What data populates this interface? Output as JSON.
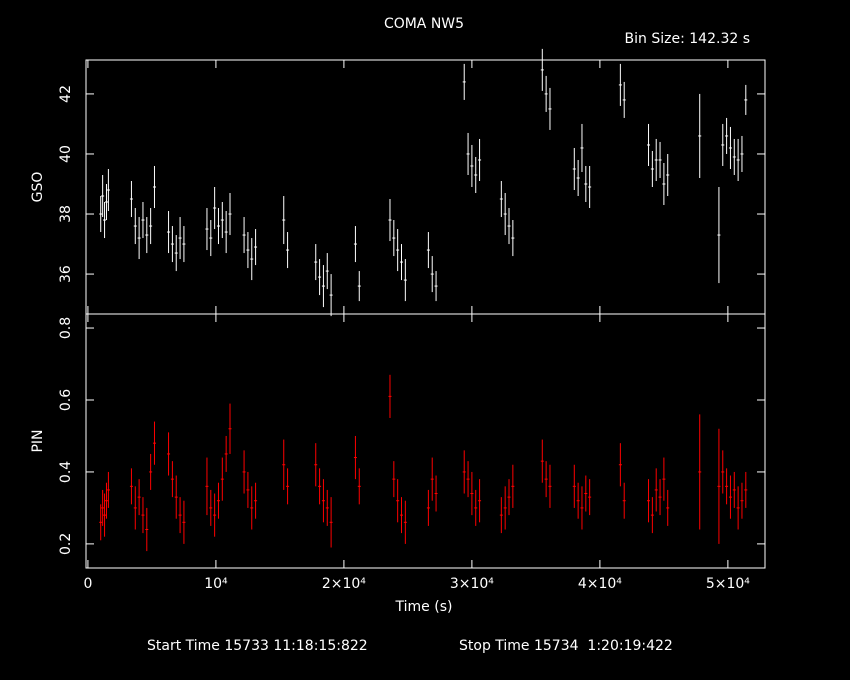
{
  "chart_data": [
    {
      "type": "errorbar",
      "title": "COMA NW5",
      "subtitle": "Bin Size: 142.32 s",
      "ylabel": "GSO",
      "color": "#ffffff",
      "xlim": [
        -150,
        52900
      ],
      "ylim": [
        34.67,
        43.13
      ],
      "yticks": [
        36,
        38,
        40,
        42
      ],
      "x": [
        1000,
        1150,
        1300,
        1450,
        1600,
        3400,
        3700,
        4000,
        4300,
        4600,
        4900,
        5200,
        6300,
        6600,
        6900,
        7200,
        7500,
        9300,
        9600,
        9900,
        10200,
        10500,
        10800,
        11100,
        12200,
        12500,
        12800,
        13100,
        15300,
        15600,
        17800,
        18100,
        18400,
        18700,
        19000,
        20900,
        21200,
        23600,
        23900,
        24200,
        24500,
        24800,
        26600,
        26900,
        27200,
        29400,
        29700,
        30000,
        30300,
        30600,
        32300,
        32600,
        32900,
        33200,
        35500,
        35800,
        36100,
        38000,
        38300,
        38600,
        38900,
        39200,
        41600,
        41900,
        43800,
        44100,
        44400,
        44700,
        45000,
        45300,
        47800,
        49300,
        49600,
        49900,
        50200,
        50500,
        50800,
        51100,
        51400
      ],
      "values": [
        38.0,
        38.6,
        37.8,
        38.4,
        38.8,
        38.5,
        37.6,
        37.2,
        37.8,
        37.3,
        37.6,
        38.9,
        37.4,
        37.0,
        36.7,
        37.2,
        37.0,
        37.5,
        37.2,
        38.2,
        37.6,
        37.8,
        37.4,
        38.0,
        37.3,
        36.8,
        36.5,
        36.9,
        37.8,
        36.8,
        36.4,
        35.9,
        35.6,
        36.1,
        35.3,
        37.0,
        35.6,
        37.8,
        37.2,
        36.8,
        36.4,
        35.8,
        36.8,
        36.0,
        35.6,
        42.4,
        40.0,
        39.6,
        39.3,
        39.8,
        38.5,
        38.0,
        37.6,
        37.2,
        42.8,
        42.0,
        41.5,
        39.5,
        39.2,
        40.2,
        39.0,
        38.9,
        42.3,
        41.8,
        40.3,
        39.5,
        39.8,
        39.8,
        39.0,
        39.3,
        40.6,
        37.3,
        40.3,
        40.6,
        40.2,
        39.9,
        39.8,
        40.0,
        41.8
      ],
      "errors": [
        0.6,
        0.7,
        0.6,
        0.6,
        0.7,
        0.6,
        0.6,
        0.7,
        0.6,
        0.6,
        0.6,
        0.7,
        0.7,
        0.6,
        0.6,
        0.7,
        0.6,
        0.7,
        0.6,
        0.7,
        0.6,
        0.6,
        0.7,
        0.7,
        0.6,
        0.6,
        0.7,
        0.6,
        0.8,
        0.6,
        0.6,
        0.6,
        0.7,
        0.6,
        0.7,
        0.6,
        0.5,
        0.7,
        0.6,
        0.7,
        0.6,
        0.7,
        0.6,
        0.6,
        0.5,
        0.6,
        0.7,
        0.7,
        0.6,
        0.7,
        0.6,
        0.7,
        0.6,
        0.6,
        0.7,
        0.6,
        0.7,
        0.7,
        0.6,
        0.8,
        0.6,
        0.7,
        0.7,
        0.6,
        0.7,
        0.6,
        0.7,
        0.6,
        0.7,
        0.7,
        1.4,
        1.6,
        0.7,
        0.6,
        0.7,
        0.6,
        0.7,
        0.6,
        0.5
      ]
    },
    {
      "type": "errorbar",
      "ylabel": "PIN",
      "xlabel": "Time (s)",
      "color": "#ff0000",
      "xlim": [
        -150,
        52900
      ],
      "ylim": [
        0.133,
        0.839
      ],
      "yticks": [
        0.2,
        0.4,
        0.6,
        0.8
      ],
      "xticks": [
        0,
        {
          "value": 10000,
          "label": "10⁴"
        },
        {
          "value": 20000,
          "label": "2×10⁴"
        },
        {
          "value": 30000,
          "label": "3×10⁴"
        },
        {
          "value": 40000,
          "label": "4×10⁴"
        },
        {
          "value": 50000,
          "label": "5×10⁴"
        }
      ],
      "x": [
        1000,
        1150,
        1300,
        1450,
        1600,
        3400,
        3700,
        4000,
        4300,
        4600,
        4900,
        5200,
        6300,
        6600,
        6900,
        7200,
        7500,
        9300,
        9600,
        9900,
        10200,
        10500,
        10800,
        11100,
        12200,
        12500,
        12800,
        13100,
        15300,
        15600,
        17800,
        18100,
        18400,
        18700,
        19000,
        20900,
        21200,
        23600,
        23900,
        24200,
        24500,
        24800,
        26600,
        26900,
        27200,
        29400,
        29700,
        30000,
        30300,
        30600,
        32300,
        32600,
        32900,
        33200,
        35500,
        35800,
        36100,
        38000,
        38300,
        38600,
        38900,
        39200,
        41600,
        41900,
        43800,
        44100,
        44400,
        44700,
        45000,
        45300,
        47800,
        49300,
        49600,
        49900,
        50200,
        50500,
        50800,
        51100,
        51400
      ],
      "values": [
        0.26,
        0.3,
        0.28,
        0.32,
        0.35,
        0.36,
        0.3,
        0.33,
        0.28,
        0.24,
        0.4,
        0.48,
        0.45,
        0.38,
        0.33,
        0.28,
        0.26,
        0.36,
        0.3,
        0.28,
        0.32,
        0.38,
        0.45,
        0.52,
        0.4,
        0.35,
        0.3,
        0.32,
        0.42,
        0.36,
        0.42,
        0.36,
        0.32,
        0.3,
        0.26,
        0.44,
        0.36,
        0.61,
        0.38,
        0.32,
        0.28,
        0.26,
        0.3,
        0.38,
        0.34,
        0.4,
        0.38,
        0.34,
        0.3,
        0.32,
        0.28,
        0.3,
        0.33,
        0.36,
        0.43,
        0.38,
        0.36,
        0.36,
        0.32,
        0.3,
        0.34,
        0.33,
        0.42,
        0.32,
        0.32,
        0.28,
        0.35,
        0.33,
        0.38,
        0.3,
        0.4,
        0.36,
        0.4,
        0.36,
        0.33,
        0.35,
        0.3,
        0.32,
        0.35
      ],
      "errors": [
        0.05,
        0.05,
        0.06,
        0.05,
        0.05,
        0.05,
        0.06,
        0.05,
        0.05,
        0.06,
        0.05,
        0.06,
        0.06,
        0.05,
        0.06,
        0.05,
        0.06,
        0.08,
        0.05,
        0.06,
        0.05,
        0.06,
        0.05,
        0.07,
        0.06,
        0.05,
        0.06,
        0.05,
        0.07,
        0.05,
        0.06,
        0.05,
        0.06,
        0.05,
        0.07,
        0.06,
        0.05,
        0.06,
        0.05,
        0.06,
        0.05,
        0.06,
        0.05,
        0.06,
        0.05,
        0.06,
        0.05,
        0.06,
        0.05,
        0.06,
        0.05,
        0.06,
        0.05,
        0.06,
        0.06,
        0.05,
        0.06,
        0.06,
        0.05,
        0.06,
        0.05,
        0.05,
        0.06,
        0.05,
        0.06,
        0.05,
        0.06,
        0.05,
        0.06,
        0.05,
        0.16,
        0.16,
        0.06,
        0.05,
        0.06,
        0.05,
        0.06,
        0.05,
        0.05
      ]
    }
  ],
  "footer": {
    "start": "Start Time 15733 11:18:15:822",
    "stop": "Stop Time 15734  1:20:19:422"
  }
}
